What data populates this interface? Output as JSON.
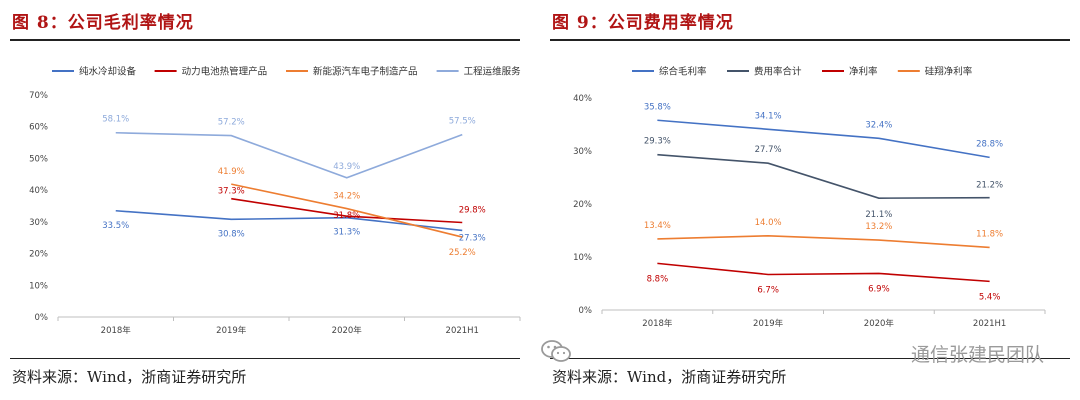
{
  "left": {
    "figure_title": "图 8：公司毛利率情况",
    "source": "资料来源：Wind，浙商证券研究所",
    "chart_data": {
      "type": "line",
      "categories": [
        "2018年",
        "2019年",
        "2020年",
        "2021H1"
      ],
      "y_ticks": [
        "0%",
        "10%",
        "20%",
        "30%",
        "40%",
        "50%",
        "60%",
        "70%"
      ],
      "ylim": [
        0,
        70
      ],
      "legend_position": "top",
      "series": [
        {
          "name": "纯水冷却设备",
          "color": "#4472c4",
          "values": [
            33.5,
            30.8,
            31.3,
            27.3
          ],
          "labels": [
            "33.5%",
            "30.8%",
            "31.3%",
            "27.3%"
          ]
        },
        {
          "name": "动力电池热管理产品",
          "color": "#c00000",
          "values": [
            null,
            37.3,
            31.8,
            29.8
          ],
          "labels": [
            "",
            "37.3%",
            "31.8%",
            "29.8%"
          ]
        },
        {
          "name": "新能源汽车电子制造产品",
          "color": "#ed7d31",
          "values": [
            null,
            41.9,
            34.2,
            25.2
          ],
          "labels": [
            "",
            "41.9%",
            "34.2%",
            "25.2%"
          ]
        },
        {
          "name": "工程运维服务",
          "color": "#8eaadb",
          "values": [
            58.1,
            57.2,
            43.9,
            57.5
          ],
          "labels": [
            "58.1%",
            "57.2%",
            "43.9%",
            "57.5%"
          ]
        }
      ]
    }
  },
  "right": {
    "figure_title": "图 9：公司费用率情况",
    "source": "资料来源：Wind，浙商证券研究所",
    "watermark": "通信张建民团队",
    "chart_data": {
      "type": "line",
      "categories": [
        "2018年",
        "2019年",
        "2020年",
        "2021H1"
      ],
      "y_ticks": [
        "0%",
        "10%",
        "20%",
        "30%",
        "40%"
      ],
      "ylim": [
        0,
        40
      ],
      "legend_position": "top",
      "series": [
        {
          "name": "综合毛利率",
          "color": "#4472c4",
          "values": [
            35.8,
            34.1,
            32.4,
            28.8
          ],
          "labels": [
            "35.8%",
            "34.1%",
            "32.4%",
            "28.8%"
          ]
        },
        {
          "name": "费用率合计",
          "color": "#44546a",
          "values": [
            29.3,
            27.7,
            21.1,
            21.2
          ],
          "labels": [
            "29.3%",
            "27.7%",
            "21.1%",
            "21.2%"
          ]
        },
        {
          "name": "净利率",
          "color": "#c00000",
          "values": [
            8.8,
            6.7,
            6.9,
            5.4
          ],
          "labels": [
            "8.8%",
            "6.7%",
            "6.9%",
            "5.4%"
          ]
        },
        {
          "name": "硅翔净利率",
          "color": "#ed7d31",
          "values": [
            13.4,
            14.0,
            13.2,
            11.8
          ],
          "labels": [
            "13.4%",
            "14.0%",
            "13.2%",
            "11.8%"
          ]
        }
      ]
    }
  }
}
